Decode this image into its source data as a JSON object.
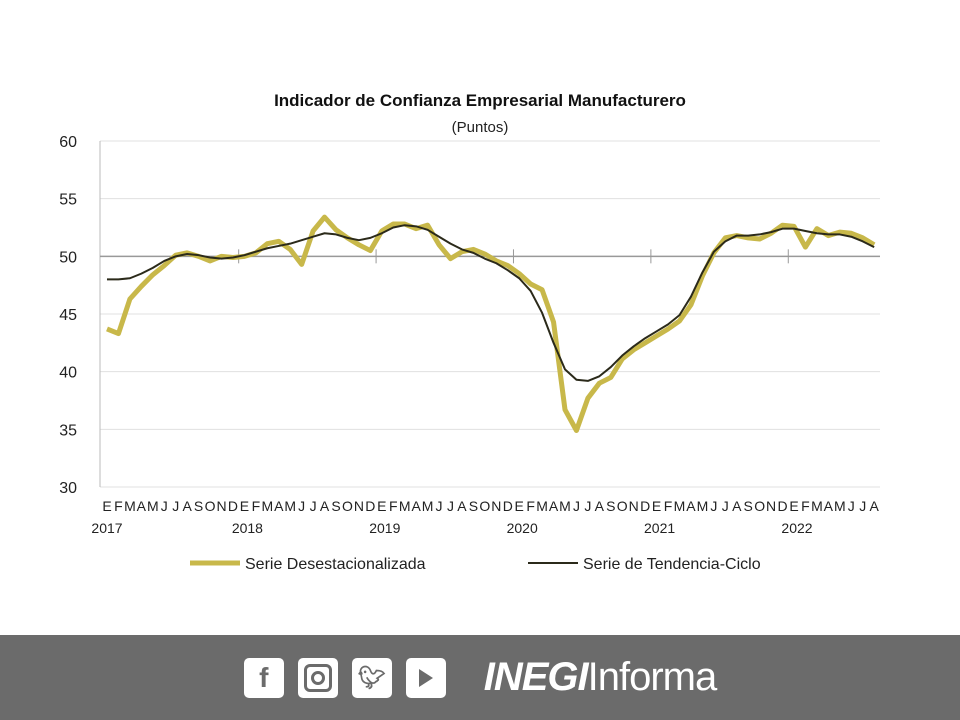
{
  "chart_data": {
    "type": "line",
    "title": "Indicador de Confianza Empresarial Manufacturero",
    "subtitle": "(Puntos)",
    "ylim": [
      30,
      60
    ],
    "yticks": [
      "30",
      "35",
      "40",
      "45",
      "50",
      "55",
      "60"
    ],
    "month_labels": [
      "E",
      "F",
      "M",
      "A",
      "M",
      "J",
      "J",
      "A",
      "S",
      "O",
      "N",
      "D"
    ],
    "years": [
      "2017",
      "2018",
      "2019",
      "2020",
      "2021",
      "2022"
    ],
    "reference_line": 50,
    "series": [
      {
        "name": "Serie Desestacionalizada",
        "color": "#c8b84a",
        "values": [
          43.7,
          43.3,
          46.3,
          47.4,
          48.4,
          49.2,
          50.1,
          50.3,
          50.0,
          49.6,
          50.0,
          49.9,
          50.0,
          50.3,
          51.1,
          51.3,
          50.6,
          49.3,
          52.2,
          53.4,
          52.3,
          51.6,
          51.0,
          50.5,
          52.2,
          52.8,
          52.8,
          52.4,
          52.7,
          51.0,
          49.8,
          50.4,
          50.6,
          50.2,
          49.6,
          49.2,
          48.5,
          47.6,
          47.1,
          44.3,
          36.7,
          34.9,
          37.7,
          39.0,
          39.5,
          41.1,
          41.9,
          42.5,
          43.1,
          43.7,
          44.4,
          45.8,
          48.3,
          50.3,
          51.6,
          51.8,
          51.6,
          51.5,
          52.0,
          52.7,
          52.6,
          50.8,
          52.4,
          51.8,
          52.1,
          52.0,
          51.6,
          51.0
        ]
      },
      {
        "name": "Serie de Tendencia-Ciclo",
        "color": "#2b2a1a",
        "values": [
          48.0,
          48.0,
          48.1,
          48.5,
          49.0,
          49.6,
          50.0,
          50.2,
          50.1,
          49.9,
          49.8,
          49.9,
          50.1,
          50.4,
          50.7,
          50.9,
          51.1,
          51.4,
          51.7,
          52.0,
          51.9,
          51.6,
          51.4,
          51.6,
          52.0,
          52.5,
          52.7,
          52.6,
          52.3,
          51.7,
          51.1,
          50.6,
          50.3,
          49.8,
          49.4,
          48.8,
          48.1,
          47.0,
          45.1,
          42.5,
          40.2,
          39.3,
          39.2,
          39.6,
          40.4,
          41.4,
          42.2,
          42.9,
          43.5,
          44.1,
          44.9,
          46.5,
          48.6,
          50.4,
          51.3,
          51.8,
          51.8,
          51.9,
          52.1,
          52.4,
          52.4,
          52.2,
          52.0,
          51.9,
          51.9,
          51.7,
          51.3,
          50.8
        ]
      }
    ],
    "legend": "bottom"
  },
  "footer": {
    "brand_bold": "INEGI",
    "brand_light": "Informa",
    "social": [
      "facebook-icon",
      "instagram-icon",
      "twitter-icon",
      "youtube-icon"
    ]
  }
}
